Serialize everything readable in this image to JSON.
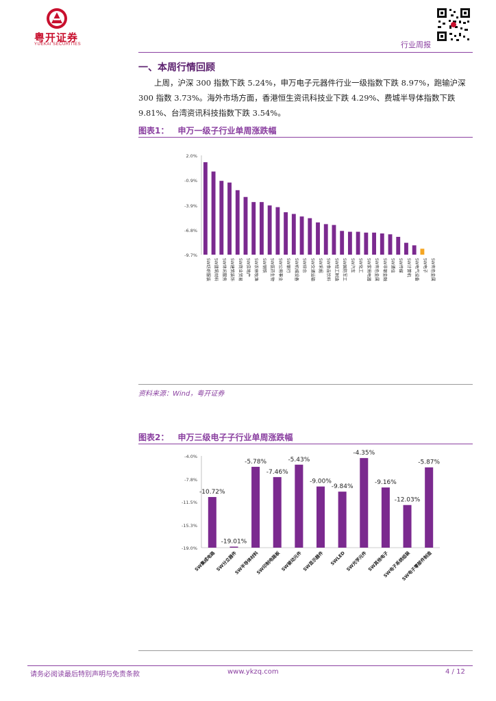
{
  "header": {
    "logo_cn": "粤开证券",
    "logo_en": "YUEKAI SECURITIES",
    "report_type": "行业周报"
  },
  "section": {
    "title": "一、本周行情回顾",
    "paragraph": "上周，沪深 300 指数下跌 5.24%，申万电子元器件行业一级指数下跌 8.97%，跑输沪深 300 指数 3.73%。海外市场方面，香港恒生资讯科技业下跌 4.29%、费城半导体指数下跌 9.81%、台湾资讯科技指数下跌 3.54%。"
  },
  "figure1": {
    "label": "图表1：",
    "title": "申万一级子行业单周涨跌幅",
    "source": "资料来源：Wind，粤开证券"
  },
  "figure2": {
    "label": "图表2：",
    "title": "申万三级电子子行业单周涨跌幅"
  },
  "footer": {
    "disclaimer": "请务必阅读最后特别声明与免责条款",
    "website": "www.ykzq.com",
    "page": "4 / 12"
  },
  "colors": {
    "purple": "#7b2a8f",
    "highlight": "#f5a623",
    "accent": "#8a3fa0"
  },
  "chart_data": [
    {
      "type": "bar",
      "title": "申万一级子行业单周涨跌幅",
      "ylim": [
        -9.7,
        2.0
      ],
      "yticks": [
        "2.0%",
        "-0.9%",
        "-3.9%",
        "-6.8%",
        "-9.7%"
      ],
      "ytick_values": [
        2.0,
        -0.9,
        -3.9,
        -6.8,
        -9.7
      ],
      "categories": [
        "SW纺织服装",
        "SW建筑材料",
        "SW休闲服务",
        "SW建筑装饰",
        "SW商业贸易",
        "SW房地产",
        "SW农林牧渔",
        "SW钢铁",
        "SW医药生物",
        "SW公用事业",
        "SW银行",
        "SW机械设备",
        "SW综合",
        "SW交通运输",
        "SW采掘",
        "SW食品饮料",
        "SW轻工制造",
        "SW国防军工",
        "SW汽车",
        "SW化工",
        "SW家用电器",
        "SW有色金属",
        "SW非银金融",
        "SW通信",
        "SW传媒",
        "SW计算机",
        "SW电气设备",
        "SW电子",
        "SW有色金属"
      ],
      "values": [
        1.2,
        0.1,
        -1.0,
        -1.2,
        -2.1,
        -2.9,
        -3.5,
        -3.5,
        -3.9,
        -4.1,
        -4.7,
        -4.9,
        -5.2,
        -5.4,
        -5.9,
        -6.1,
        -6.2,
        -6.9,
        -7.0,
        -7.0,
        -7.1,
        -7.1,
        -7.2,
        -7.3,
        -7.6,
        -8.3,
        -8.6,
        -9.0,
        null
      ],
      "highlight_index": 27
    },
    {
      "type": "bar",
      "title": "申万三级电子子行业单周涨跌幅",
      "ylim": [
        -19.0,
        -4.0
      ],
      "yticks": [
        "-4.0%",
        "-7.8%",
        "-11.5%",
        "-15.3%",
        "-19.0%"
      ],
      "ytick_values": [
        -4.0,
        -7.8,
        -11.5,
        -15.3,
        -19.0
      ],
      "categories": [
        "SW集成电路",
        "SW分立器件",
        "SW半导体材料",
        "SW印制电路板",
        "SW被动元件",
        "SW显示器件",
        "SWLED",
        "SW光学元件",
        "SW其他电子",
        "SW电子系统组装",
        "SW电子零部件制造"
      ],
      "values": [
        -10.72,
        -19.01,
        -5.78,
        -7.46,
        -5.43,
        -9.0,
        -9.84,
        -4.35,
        -9.16,
        -12.03,
        -5.87
      ],
      "data_labels": [
        "-10.72%",
        "-19.01%",
        "-5.78%",
        "-7.46%",
        "-5.43%",
        "-9.00%",
        "-9.84%",
        "-4.35%",
        "-9.16%",
        "-12.03%",
        "-5.87%"
      ]
    }
  ]
}
